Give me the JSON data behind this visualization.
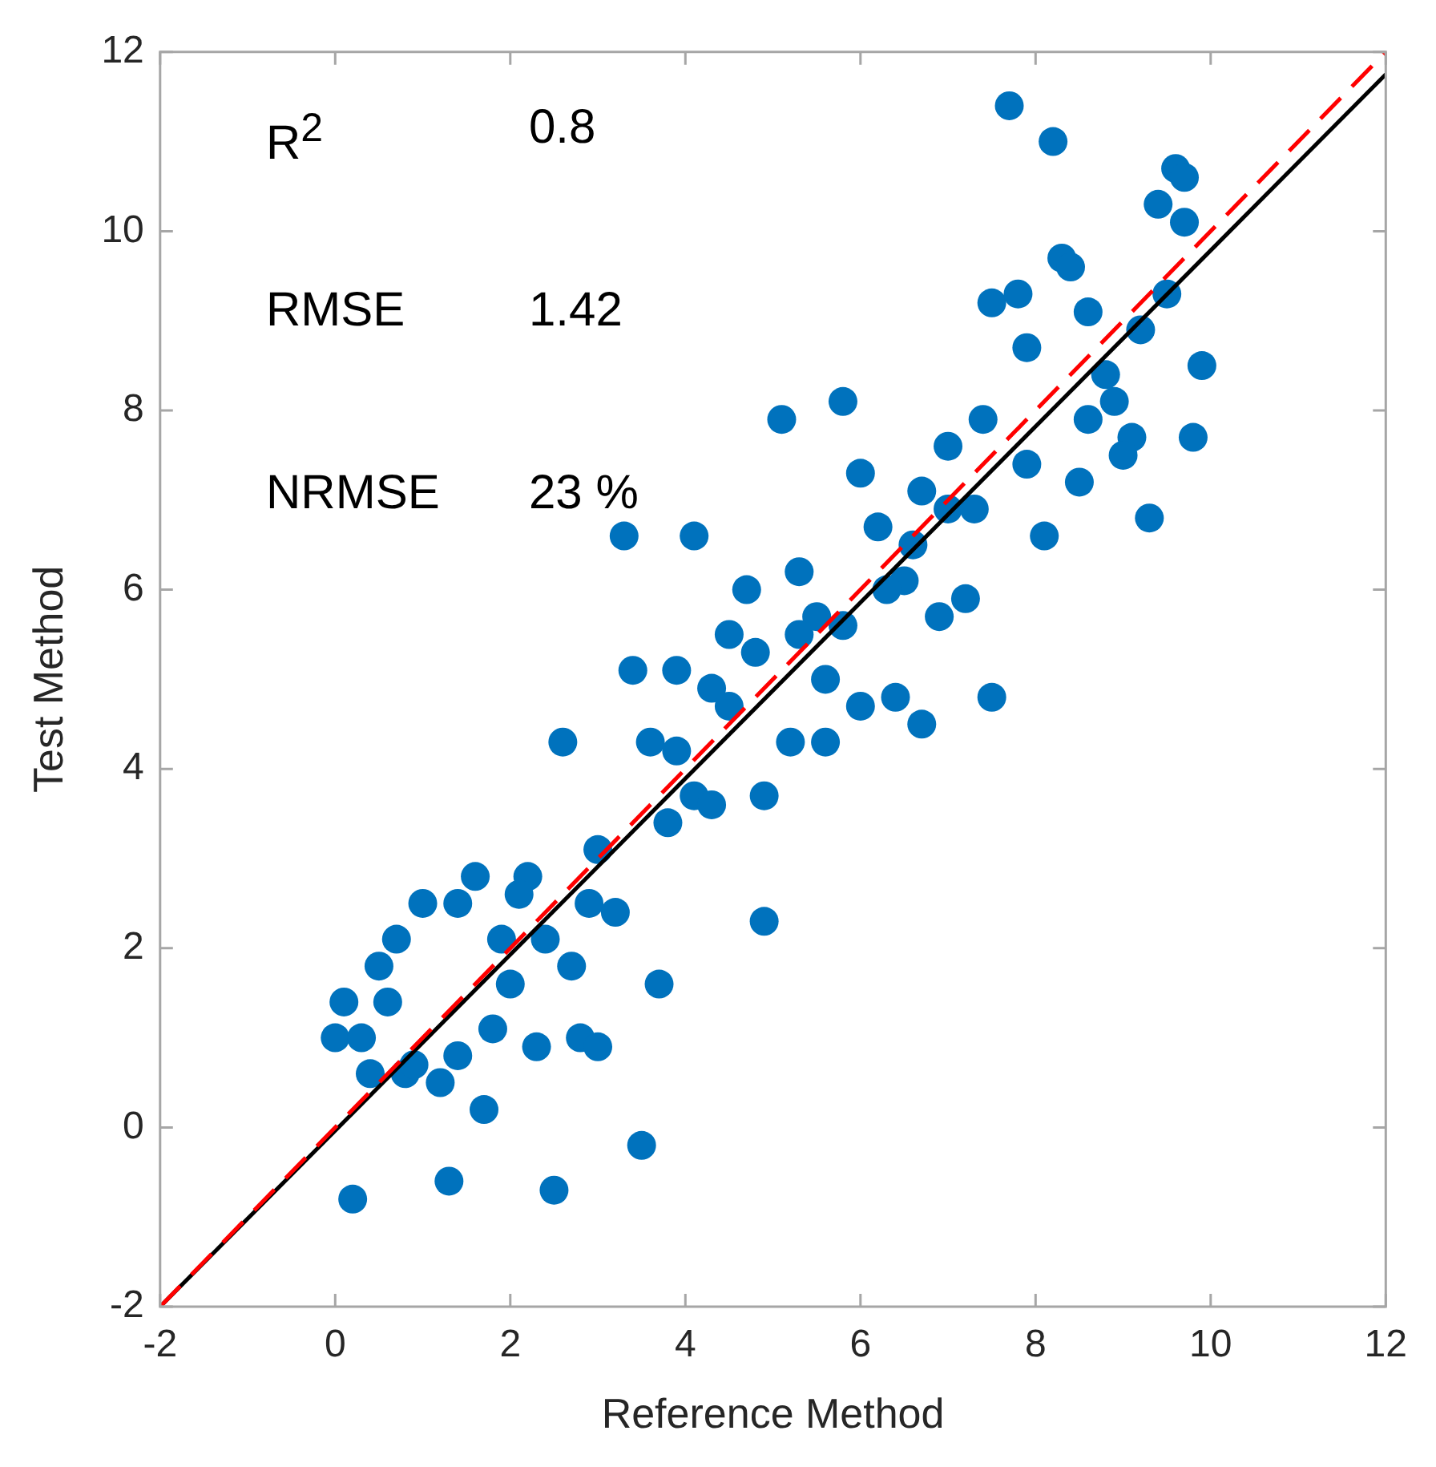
{
  "chart_data": {
    "type": "scatter",
    "xlabel": "Reference Method",
    "ylabel": "Test Method",
    "xlim": [
      -2,
      12
    ],
    "ylim": [
      -2,
      12
    ],
    "xticks": [
      -2,
      0,
      2,
      4,
      6,
      8,
      10,
      12
    ],
    "yticks": [
      -2,
      0,
      2,
      4,
      6,
      8,
      10,
      12
    ],
    "grid": false,
    "marker": "circle",
    "annotations": [
      "R$^{2}$",
      "0.8",
      "RMSE",
      "1.42",
      "NRMSE",
      "23 %"
    ],
    "series": [
      {
        "color": "#0072bd",
        "x": [
          7.7,
          8.2,
          9.6,
          9.7,
          9.4,
          9.7,
          8.3,
          8.4,
          7.5,
          7.8,
          8.6,
          9.5,
          9.2,
          7.9,
          9.9,
          8.8,
          8.9,
          8.6,
          9.1,
          9.0,
          9.8,
          7.4,
          7.0,
          7.9,
          8.5,
          9.3,
          8.1,
          6.7,
          7.0,
          7.3,
          5.1,
          5.8,
          6.0,
          6.2,
          6.6,
          5.3,
          4.7,
          6.5,
          6.3,
          5.5,
          5.8,
          5.3,
          4.8,
          7.2,
          6.9,
          5.6,
          6.0,
          6.4,
          6.7,
          7.5,
          5.2,
          5.6,
          3.3,
          4.1,
          4.5,
          3.4,
          3.9,
          4.3,
          4.5,
          2.6,
          3.6,
          3.9,
          4.9,
          4.1,
          4.3,
          3.8,
          3.0,
          1.6,
          2.2,
          1.0,
          1.4,
          2.1,
          2.9,
          3.2,
          4.9,
          0.7,
          1.9,
          2.4,
          0.5,
          2.7,
          0.1,
          0.6,
          2.0,
          3.7,
          1.8,
          0.0,
          0.3,
          1.4,
          2.3,
          2.8,
          3.0,
          0.4,
          0.8,
          0.9,
          1.2,
          1.7,
          3.5,
          1.3,
          2.5,
          0.2
        ],
        "values": [
          11.4,
          11.0,
          10.7,
          10.6,
          10.3,
          10.1,
          9.7,
          9.6,
          9.2,
          9.3,
          9.1,
          9.3,
          8.9,
          8.7,
          8.5,
          8.4,
          8.1,
          7.9,
          7.7,
          7.5,
          7.7,
          7.9,
          7.6,
          7.4,
          7.2,
          6.8,
          6.6,
          7.1,
          6.9,
          6.9,
          7.9,
          8.1,
          7.3,
          6.7,
          6.5,
          6.2,
          6.0,
          6.1,
          6.0,
          5.7,
          5.6,
          5.5,
          5.3,
          5.9,
          5.7,
          5.0,
          4.7,
          4.8,
          4.5,
          4.8,
          4.3,
          4.3,
          6.6,
          6.6,
          5.5,
          5.1,
          5.1,
          4.9,
          4.7,
          4.3,
          4.3,
          4.2,
          3.7,
          3.7,
          3.6,
          3.4,
          3.1,
          2.8,
          2.8,
          2.5,
          2.5,
          2.6,
          2.5,
          2.4,
          2.3,
          2.1,
          2.1,
          2.1,
          1.8,
          1.8,
          1.4,
          1.4,
          1.6,
          1.6,
          1.1,
          1.0,
          1.0,
          0.8,
          0.9,
          1.0,
          0.9,
          0.6,
          0.6,
          0.7,
          0.5,
          0.2,
          -0.2,
          -0.6,
          -0.7,
          -0.8
        ]
      },
      {
        "type": "line",
        "color": "#ff0000",
        "line_style": "dashed",
        "marker": "none",
        "x": [
          -2,
          12
        ],
        "values": [
          -2,
          12
        ]
      },
      {
        "type": "line",
        "color": "#000000",
        "line_style": "solid",
        "marker": "none",
        "x": [
          -2,
          12
        ],
        "values": [
          -2,
          11.75
        ]
      }
    ]
  }
}
